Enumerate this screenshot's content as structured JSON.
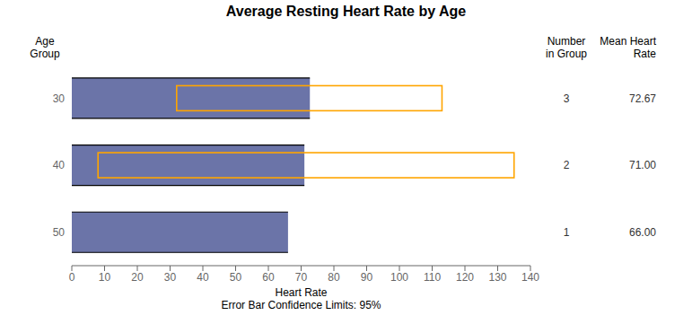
{
  "chart_data": {
    "type": "bar",
    "orientation": "horizontal",
    "title": "Average Resting Heart Rate by Age",
    "categories": [
      "30",
      "40",
      "50"
    ],
    "values": [
      72.67,
      71.0,
      66.0
    ],
    "value_labels": [
      "72.67",
      "71.00",
      "66.00"
    ],
    "color": "#6B74A8",
    "error_low": [
      32.0,
      8.0,
      null
    ],
    "error_high": [
      113.0,
      135.0,
      null
    ],
    "error_color": "#FFA500",
    "xlabel": "Heart Rate\nError Bar Confidence Limits: 95%",
    "ylabel": "Age\nGroup",
    "xlim": [
      0,
      140
    ],
    "xticks": [
      0,
      10,
      20,
      30,
      40,
      50,
      60,
      70,
      80,
      90,
      100,
      110,
      120,
      130,
      140
    ],
    "n_in_group": [
      3,
      2,
      1
    ],
    "n_header": "Number\nin Group",
    "values_header": "Mean Heart\nRate",
    "grid": false
  }
}
